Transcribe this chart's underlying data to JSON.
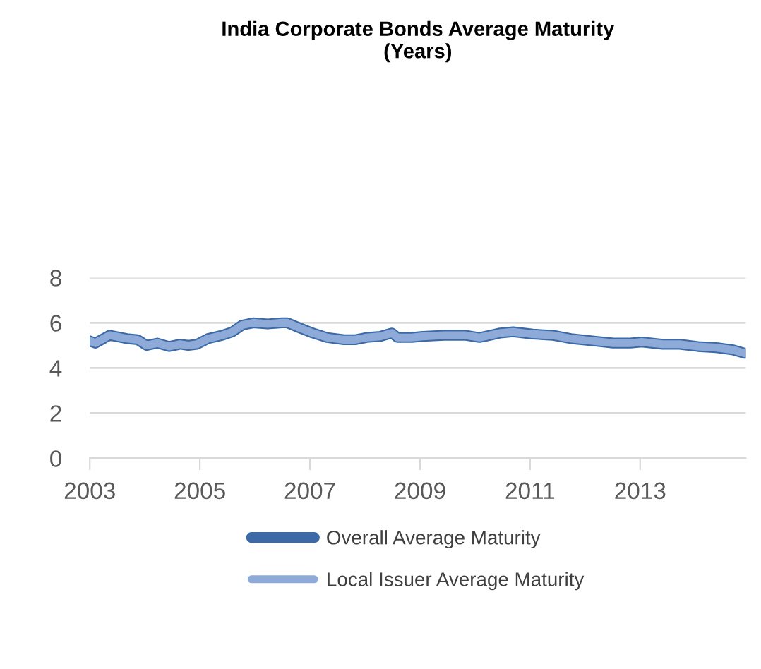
{
  "chart_data": {
    "type": "line",
    "title": "India Corporate Bonds Average Maturity\n(Years)",
    "x": [
      2003.0,
      2003.1,
      2003.36,
      2003.67,
      2003.87,
      2004.03,
      2004.23,
      2004.44,
      2004.64,
      2004.79,
      2004.95,
      2005.15,
      2005.41,
      2005.59,
      2005.77,
      2005.97,
      2006.23,
      2006.49,
      2006.59,
      2006.79,
      2007.05,
      2007.31,
      2007.62,
      2007.82,
      2008.03,
      2008.28,
      2008.49,
      2008.59,
      2008.85,
      2009.05,
      2009.44,
      2009.82,
      2010.08,
      2010.28,
      2010.46,
      2010.69,
      2011.05,
      2011.41,
      2011.74,
      2012.13,
      2012.51,
      2012.82,
      2013.03,
      2013.41,
      2013.72,
      2014.05,
      2014.38,
      2014.69,
      2014.9
    ],
    "series": [
      {
        "name": "Overall Average Maturity",
        "color": "#3c6aa6",
        "values": [
          5.2,
          5.1,
          5.45,
          5.3,
          5.25,
          5.0,
          5.1,
          4.95,
          5.05,
          5.0,
          5.05,
          5.3,
          5.45,
          5.6,
          5.9,
          6.0,
          5.95,
          6.0,
          6.0,
          5.8,
          5.55,
          5.35,
          5.25,
          5.25,
          5.35,
          5.4,
          5.55,
          5.35,
          5.35,
          5.4,
          5.45,
          5.45,
          5.35,
          5.45,
          5.55,
          5.6,
          5.5,
          5.45,
          5.3,
          5.2,
          5.1,
          5.1,
          5.15,
          5.05,
          5.05,
          4.95,
          4.9,
          4.8,
          4.65
        ]
      },
      {
        "name": "Local Issuer Average Maturity",
        "color": "#8eaad8",
        "values": [
          5.2,
          5.1,
          5.45,
          5.3,
          5.25,
          5.0,
          5.1,
          4.95,
          5.05,
          5.0,
          5.05,
          5.3,
          5.45,
          5.6,
          5.9,
          6.0,
          5.95,
          6.0,
          6.0,
          5.8,
          5.55,
          5.35,
          5.25,
          5.25,
          5.35,
          5.4,
          5.55,
          5.35,
          5.35,
          5.4,
          5.45,
          5.45,
          5.35,
          5.45,
          5.55,
          5.6,
          5.5,
          5.45,
          5.3,
          5.2,
          5.1,
          5.1,
          5.15,
          5.05,
          5.05,
          4.95,
          4.9,
          4.8,
          4.65
        ]
      }
    ],
    "xlim": [
      2003,
      2014.92
    ],
    "xticks": [
      2003,
      2005,
      2007,
      2009,
      2011,
      2013
    ],
    "ylim": [
      0,
      8
    ],
    "yticks": [
      0,
      2,
      4,
      6,
      8
    ],
    "grid": "y",
    "legend": "bottom",
    "marker": "none",
    "line_style": "solid"
  }
}
